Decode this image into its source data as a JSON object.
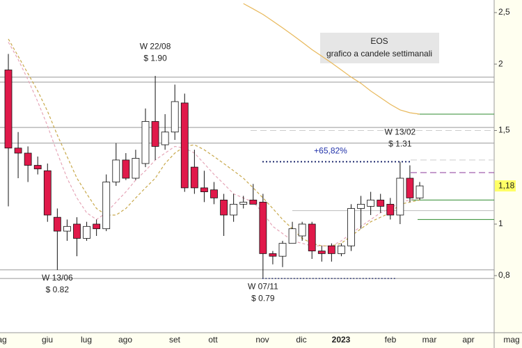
{
  "chart_data": {
    "type": "candlestick",
    "title": "EOS",
    "subtitle": "grafico a candele settimanali",
    "log_scale": true,
    "ylim": [
      0.64,
      2.64
    ],
    "yticks": [
      {
        "value": 0.8,
        "label": "0,8"
      },
      1,
      {
        "value": 1.5,
        "label": "1,5"
      },
      2,
      {
        "value": 2.5,
        "label": "2,5"
      }
    ],
    "last_price": {
      "value": 1.18,
      "label": "1,18"
    },
    "x_labels": [
      "ag",
      "giu",
      "lug",
      "ago",
      "set",
      "ott",
      "nov",
      "dic",
      "2023",
      "feb",
      "mar",
      "apr",
      "mag"
    ],
    "up_color": "#ffffff",
    "down_color": "#e0194a",
    "candles": {
      "open": [
        1.95,
        1.39,
        1.36,
        1.29,
        1.26,
        1.03,
        0.97,
        1.0,
        0.94,
        1.0,
        0.98,
        1.2,
        1.32,
        1.22,
        1.3,
        1.56,
        1.41,
        1.49,
        1.69,
        1.28,
        1.17,
        1.16,
        1.11,
        1.04,
        1.09,
        1.11,
        1.1,
        0.88,
        0.87,
        0.92,
        0.95,
        1.0,
        0.89,
        0.91,
        0.88,
        0.91,
        1.07,
        1.08,
        1.11,
        1.09,
        1.04,
        1.22,
        1.12
      ],
      "high": [
        2.09,
        1.49,
        1.4,
        1.34,
        1.3,
        1.07,
        1.02,
        1.03,
        1.01,
        1.02,
        1.24,
        1.42,
        1.36,
        1.38,
        1.65,
        1.9,
        1.61,
        1.83,
        1.76,
        1.38,
        1.26,
        1.2,
        1.14,
        1.14,
        1.13,
        1.19,
        1.14,
        0.89,
        0.93,
        1.01,
        1.01,
        1.01,
        0.91,
        0.92,
        0.92,
        1.09,
        1.13,
        1.15,
        1.14,
        1.12,
        1.31,
        1.29,
        1.2
      ],
      "low": [
        1.08,
        1.22,
        1.2,
        1.24,
        1.01,
        0.82,
        0.93,
        0.87,
        0.93,
        0.95,
        0.97,
        1.18,
        1.21,
        1.21,
        1.28,
        1.32,
        1.38,
        1.44,
        1.15,
        1.14,
        1.1,
        1.09,
        0.95,
        1.01,
        1.07,
        1.09,
        0.79,
        0.84,
        0.83,
        0.92,
        0.93,
        0.86,
        0.85,
        0.85,
        0.87,
        0.89,
        0.98,
        1.04,
        1.05,
        1.02,
        1.0,
        1.1,
        1.11
      ],
      "close": [
        1.39,
        1.36,
        1.29,
        1.27,
        1.04,
        0.97,
        0.99,
        0.94,
        0.99,
        0.98,
        1.2,
        1.32,
        1.22,
        1.33,
        1.56,
        1.4,
        1.49,
        1.7,
        1.17,
        1.17,
        1.15,
        1.12,
        1.04,
        1.09,
        1.1,
        1.09,
        0.88,
        0.87,
        0.92,
        0.98,
        1.0,
        0.89,
        0.88,
        0.88,
        0.91,
        1.07,
        1.09,
        1.11,
        1.08,
        1.04,
        1.22,
        1.12,
        1.18
      ]
    },
    "moving_averages": [
      {
        "color": "#e6a6b8",
        "style": "dashed",
        "values": [
          2.2,
          2.04,
          1.87,
          1.7,
          1.53,
          1.36,
          1.22,
          1.12,
          1.05,
          1.02,
          1.05,
          1.1,
          1.15,
          1.21,
          1.26,
          1.32,
          1.36,
          1.4,
          1.39,
          1.36,
          1.3,
          1.24,
          1.19,
          1.14,
          1.12,
          1.1,
          1.05,
          0.99,
          0.96,
          0.93,
          0.92,
          0.91,
          0.91,
          0.91,
          0.93,
          0.96,
          0.99,
          1.02,
          1.05,
          1.07,
          1.1,
          1.11,
          1.12
        ]
      },
      {
        "color": "#c8a84a",
        "style": "dashed",
        "values": [
          2.23,
          2.07,
          1.92,
          1.78,
          1.63,
          1.47,
          1.34,
          1.22,
          1.14,
          1.07,
          1.04,
          1.04,
          1.07,
          1.12,
          1.17,
          1.22,
          1.3,
          1.36,
          1.4,
          1.41,
          1.38,
          1.34,
          1.3,
          1.26,
          1.22,
          1.17,
          1.12,
          1.07,
          1.02,
          0.98,
          0.94,
          0.92,
          0.91,
          0.91,
          0.92,
          0.95,
          0.98,
          1.01,
          1.03,
          1.05,
          1.09,
          1.1,
          1.11
        ]
      },
      {
        "color": "#e8b85a",
        "style": "solid",
        "values": [
          null,
          null,
          null,
          null,
          null,
          null,
          null,
          null,
          null,
          null,
          null,
          null,
          null,
          null,
          null,
          null,
          null,
          null,
          null,
          null,
          null,
          null,
          null,
          null,
          2.6,
          2.54,
          2.48,
          2.41,
          2.34,
          2.27,
          2.2,
          2.13,
          2.07,
          2.01,
          1.95,
          1.89,
          1.84,
          1.78,
          1.73,
          1.68,
          1.64,
          1.62,
          1.61
        ]
      }
    ],
    "levels": [
      {
        "value": 1.89,
        "color": "#999999",
        "style": "solid"
      },
      {
        "value": 1.85,
        "color": "#999999",
        "style": "solid"
      },
      {
        "value": 1.52,
        "color": "#999999",
        "style": "solid"
      },
      {
        "value": 1.42,
        "color": "#999999",
        "style": "solid"
      },
      {
        "value": 0.82,
        "color": "#999999",
        "style": "solid"
      },
      {
        "value": 0.79,
        "color": "#999999",
        "style": "solid"
      },
      {
        "value": 1.61,
        "color": "#2e8b2e",
        "style": "solid"
      },
      {
        "value": 1.25,
        "color": "#8b3a9a",
        "style": "dashed"
      },
      {
        "value": 1.11,
        "color": "#2e8b2e",
        "style": "solid"
      },
      {
        "value": 1.02,
        "color": "#2e8b2e",
        "style": "solid"
      },
      {
        "value": 1.5,
        "color": "#cccccc",
        "style": "dashed"
      },
      {
        "value": 1.32,
        "color": "#cccccc",
        "style": "dashed"
      },
      {
        "value": 1.06,
        "color": "#bbbbbb",
        "style": "solid"
      }
    ],
    "annotations": [
      {
        "week": "W 13/06",
        "text": "$ 0.82",
        "value": 0.82
      },
      {
        "week": "W 22/08",
        "text": "$ 1.90",
        "value": 1.9
      },
      {
        "week": "W 07/11",
        "text": "$ 0.79",
        "value": 0.79
      },
      {
        "week": "W 13/02",
        "text": "$ 1.31",
        "value": 1.31
      }
    ],
    "change": {
      "value": 65.82,
      "label": "+65,82%",
      "from": 0.79
    }
  }
}
